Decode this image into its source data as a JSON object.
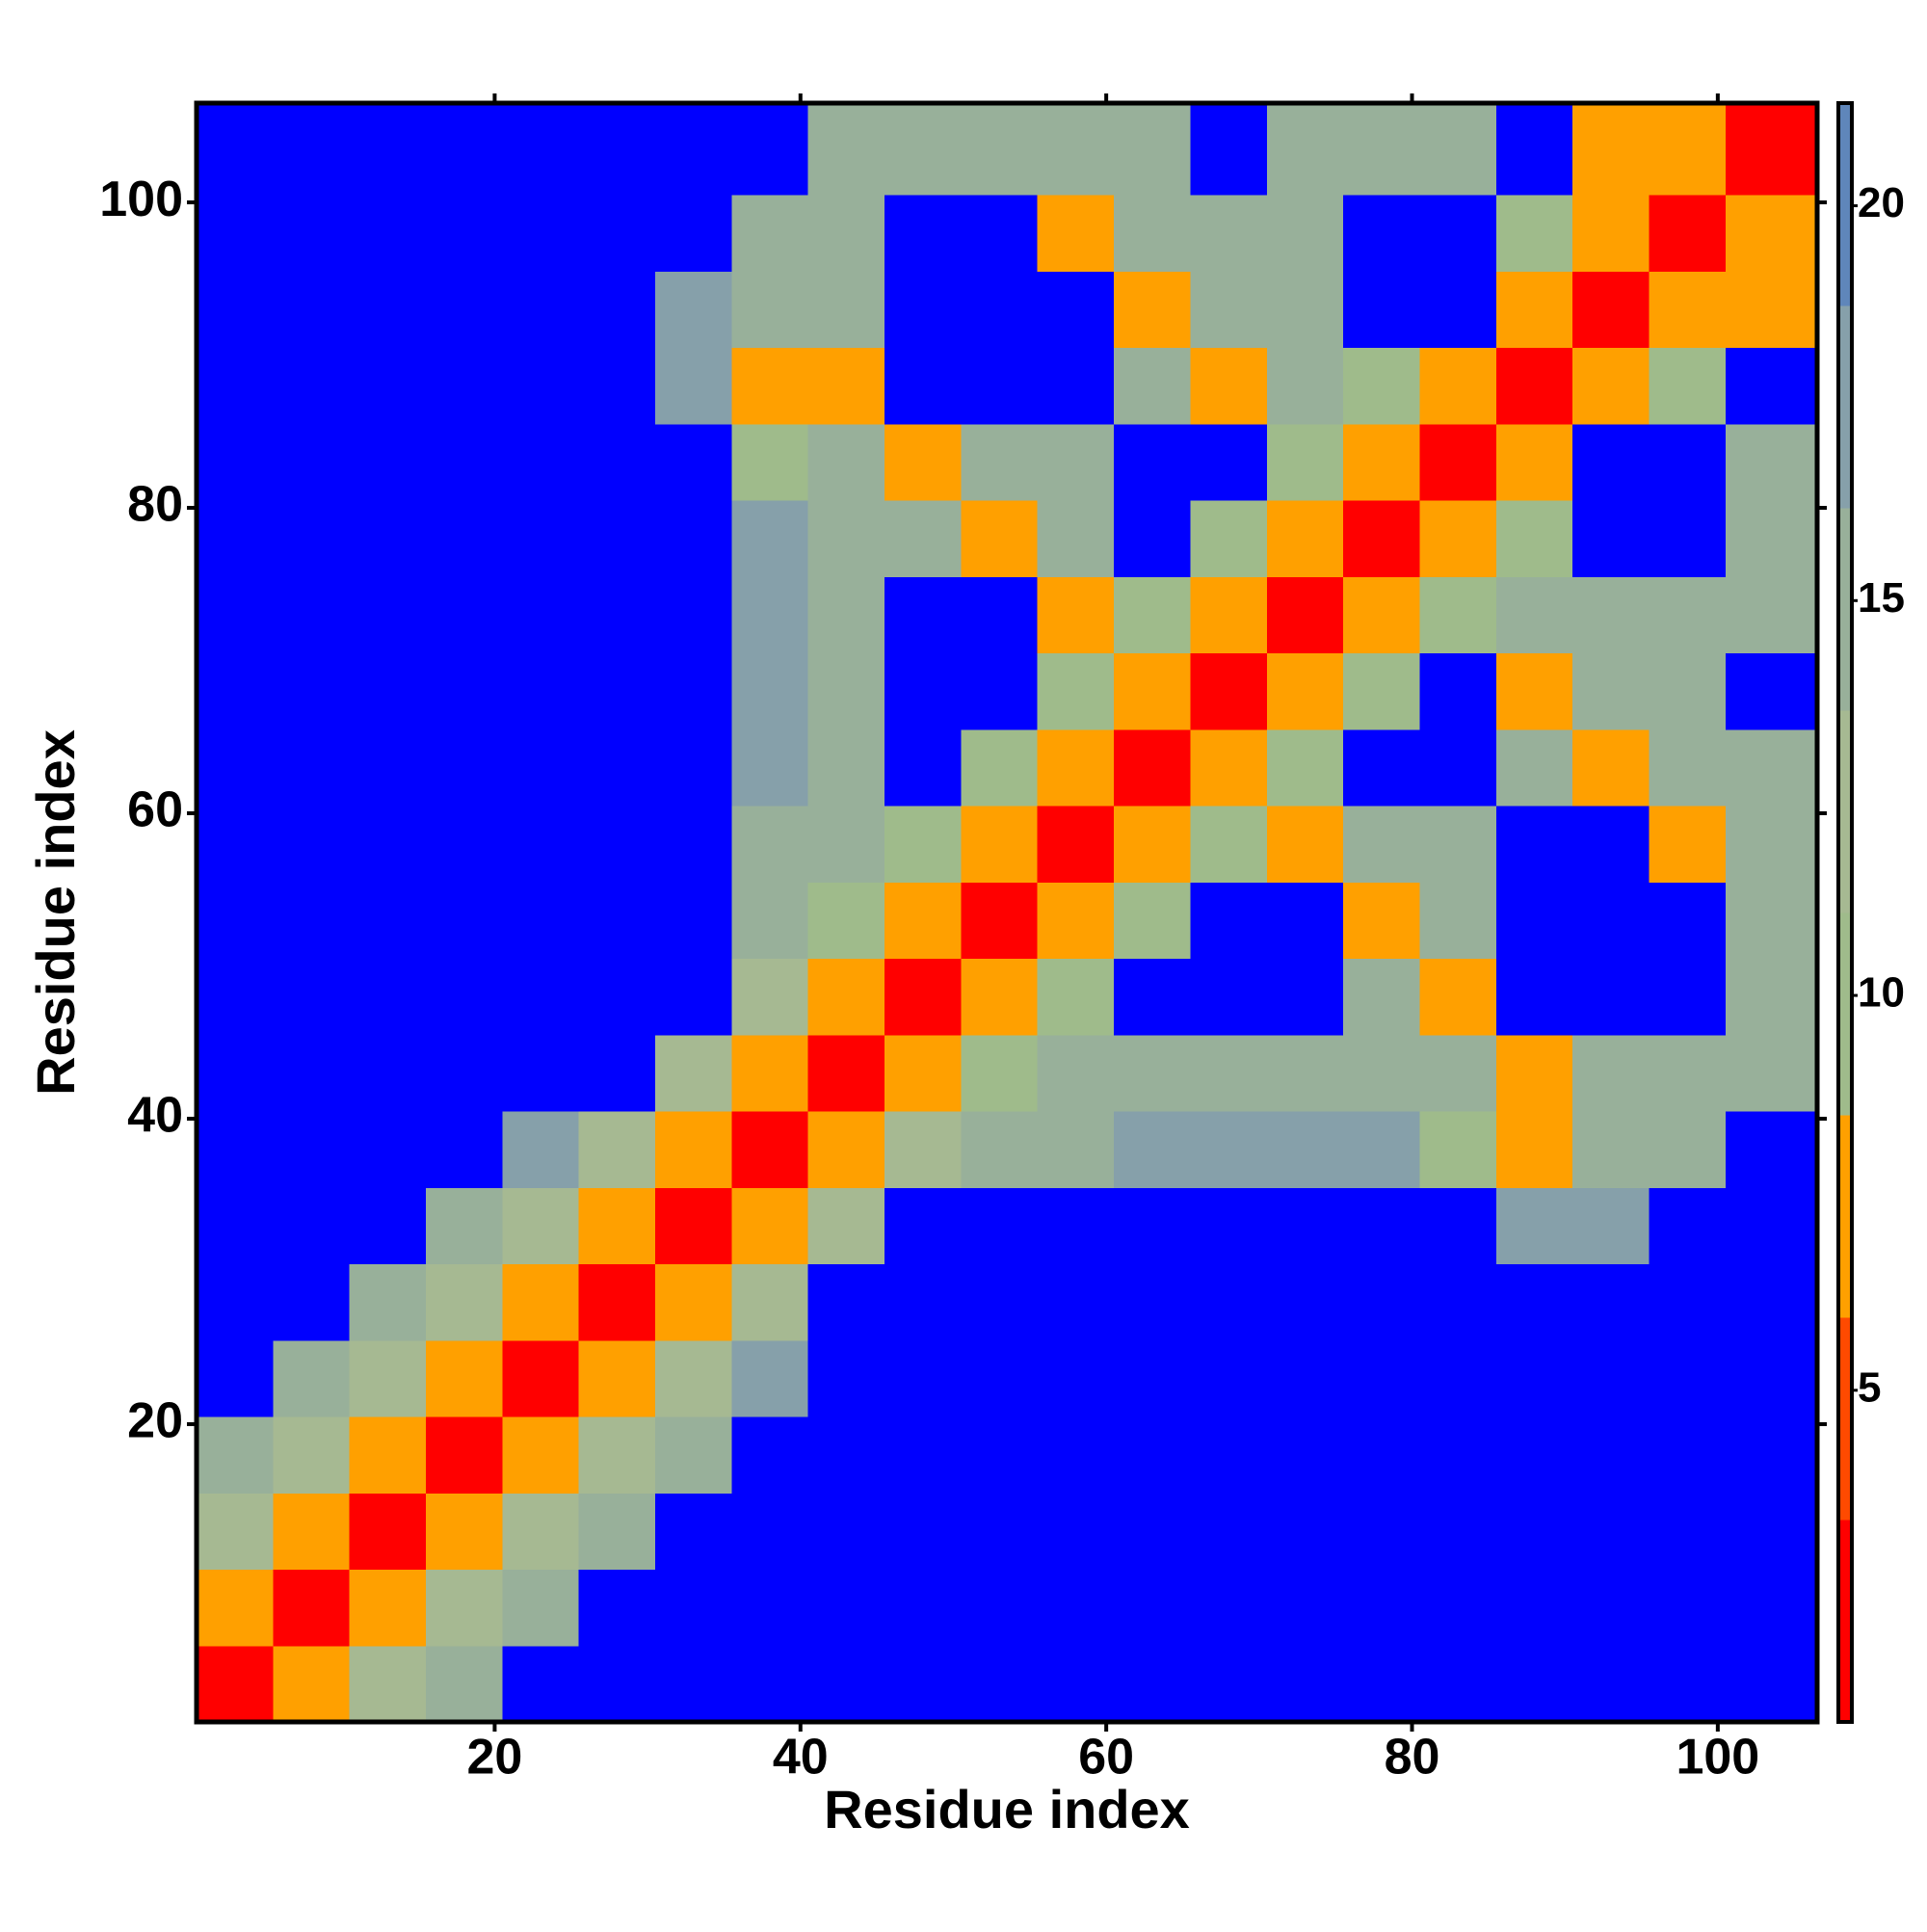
{
  "chart_data": {
    "type": "heatmap",
    "xlabel": "Residue index",
    "ylabel": "Residue index",
    "xlim": [
      0.5,
      106.5
    ],
    "ylim": [
      0.5,
      106.5
    ],
    "xticks": [
      20,
      40,
      60,
      80,
      100
    ],
    "yticks": [
      20,
      40,
      60,
      80,
      100
    ],
    "xbins": [
      0.5,
      5.5,
      10.5,
      15.5,
      20.5,
      25.5,
      30.5,
      35.5,
      40.5,
      45.5,
      50.5,
      55.5,
      60.5,
      65.5,
      70.5,
      75.5,
      80.5,
      85.5,
      90.5,
      95.5,
      100.5,
      106.5
    ],
    "ybins": [
      0.5,
      5.5,
      10.5,
      15.5,
      20.5,
      25.5,
      30.5,
      35.5,
      40.5,
      45.5,
      50.5,
      55.5,
      60.5,
      65.5,
      70.5,
      75.5,
      80.5,
      85.5,
      90.5,
      95.5,
      100.5,
      106.5
    ],
    "z": [
      [
        2,
        6,
        12,
        16,
        25,
        25,
        25,
        25,
        25,
        25,
        25,
        25,
        25,
        25,
        25,
        25,
        25,
        25,
        25,
        25,
        25
      ],
      [
        6,
        2,
        6,
        12,
        16,
        25,
        25,
        25,
        25,
        25,
        25,
        25,
        25,
        25,
        25,
        25,
        25,
        25,
        25,
        25,
        25
      ],
      [
        12,
        6,
        2,
        6,
        12,
        16,
        25,
        25,
        25,
        25,
        25,
        25,
        25,
        25,
        25,
        25,
        25,
        25,
        25,
        25,
        25
      ],
      [
        16,
        12,
        6,
        2,
        6,
        12,
        16,
        25,
        25,
        25,
        25,
        25,
        25,
        25,
        25,
        25,
        25,
        25,
        25,
        25,
        25
      ],
      [
        25,
        16,
        12,
        6,
        2,
        6,
        12,
        18,
        25,
        25,
        25,
        25,
        25,
        25,
        25,
        25,
        25,
        25,
        25,
        25,
        25
      ],
      [
        25,
        25,
        16,
        12,
        6,
        2,
        6,
        12,
        25,
        25,
        25,
        25,
        25,
        25,
        25,
        25,
        25,
        25,
        25,
        25,
        25
      ],
      [
        25,
        25,
        25,
        16,
        12,
        6,
        2,
        6,
        12,
        25,
        25,
        25,
        25,
        25,
        25,
        25,
        25,
        18,
        18,
        25,
        25
      ],
      [
        25,
        25,
        25,
        25,
        18,
        12,
        6,
        2,
        6,
        12,
        16,
        16,
        18,
        18,
        18,
        18,
        10,
        8,
        14,
        16,
        25
      ],
      [
        25,
        25,
        25,
        25,
        25,
        25,
        12,
        6,
        2,
        6,
        10,
        14,
        14,
        14,
        14,
        14,
        14,
        8,
        14,
        14,
        14
      ],
      [
        25,
        25,
        25,
        25,
        25,
        25,
        25,
        12,
        6,
        2,
        6,
        10,
        25,
        25,
        25,
        14,
        8,
        25,
        25,
        25,
        14
      ],
      [
        25,
        25,
        25,
        25,
        25,
        25,
        25,
        16,
        10,
        6,
        2,
        6,
        10,
        25,
        25,
        8,
        14,
        25,
        25,
        25,
        14
      ],
      [
        25,
        25,
        25,
        25,
        25,
        25,
        25,
        16,
        14,
        10,
        6,
        2,
        6,
        10,
        8,
        14,
        14,
        25,
        25,
        8,
        14
      ],
      [
        25,
        25,
        25,
        25,
        25,
        25,
        25,
        18,
        14,
        25,
        10,
        6,
        2,
        6,
        10,
        25,
        25,
        14,
        8,
        14,
        14
      ],
      [
        25,
        25,
        25,
        25,
        25,
        25,
        25,
        18,
        14,
        25,
        25,
        10,
        6,
        2,
        6,
        10,
        25,
        8,
        14,
        14,
        25
      ],
      [
        25,
        25,
        25,
        25,
        25,
        25,
        25,
        18,
        14,
        25,
        25,
        8,
        10,
        6,
        2,
        6,
        10,
        14,
        14,
        14,
        14
      ],
      [
        25,
        25,
        25,
        25,
        25,
        25,
        25,
        18,
        14,
        14,
        8,
        14,
        25,
        10,
        6,
        2,
        6,
        10,
        25,
        25,
        14
      ],
      [
        25,
        25,
        25,
        25,
        25,
        25,
        25,
        10,
        14,
        8,
        14,
        14,
        25,
        25,
        10,
        6,
        2,
        6,
        25,
        25,
        14
      ],
      [
        25,
        25,
        25,
        25,
        25,
        25,
        18,
        8,
        8,
        25,
        25,
        25,
        14,
        8,
        14,
        10,
        6,
        2,
        6,
        10,
        25
      ],
      [
        25,
        25,
        25,
        25,
        25,
        25,
        18,
        14,
        14,
        25,
        25,
        25,
        8,
        14,
        14,
        25,
        25,
        6,
        2,
        6,
        8
      ],
      [
        25,
        25,
        25,
        25,
        25,
        25,
        25,
        16,
        14,
        25,
        25,
        8,
        14,
        14,
        14,
        25,
        25,
        10,
        6,
        2,
        6
      ],
      [
        25,
        25,
        25,
        25,
        25,
        25,
        25,
        25,
        14,
        14,
        14,
        14,
        14,
        25,
        14,
        14,
        14,
        25,
        8,
        6,
        2
      ]
    ],
    "clim": [
      0.8,
      21.3
    ],
    "colors": [
      "#ff0000",
      "#ff4a00",
      "#ffa000",
      "#9fbb8b",
      "#a6b992",
      "#98b09a",
      "#86a0aa",
      "#5f86ba"
    ],
    "over_color": "#0000ff",
    "cbticks": [
      5,
      10,
      15,
      20
    ]
  }
}
